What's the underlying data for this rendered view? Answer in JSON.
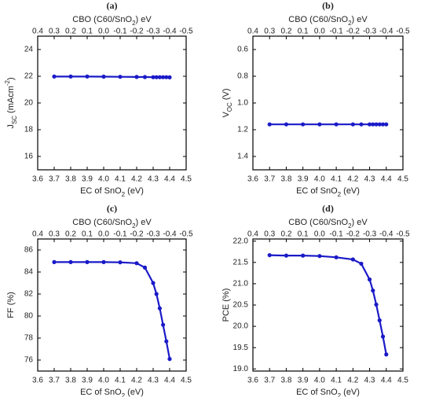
{
  "chart_data": [
    {
      "type": "line",
      "title": "(a)",
      "x2label": [
        {
          "text": "CBO (C60/SnO"
        },
        {
          "text": "2",
          "shift": "sub"
        },
        {
          "text": ") eV"
        }
      ],
      "xlabel": [
        {
          "text": "EC of SnO"
        },
        {
          "text": "2",
          "shift": "sub"
        },
        {
          "text": " (eV)"
        }
      ],
      "ylabel": [
        {
          "text": "J"
        },
        {
          "text": "SC",
          "shift": "sub"
        },
        {
          "text": " (mAcm"
        },
        {
          "text": "-2",
          "shift": "super"
        },
        {
          "text": ")"
        }
      ],
      "x": [
        3.7,
        3.8,
        3.9,
        4.0,
        4.1,
        4.2,
        4.25,
        4.3,
        4.32,
        4.34,
        4.36,
        4.38,
        4.4
      ],
      "values": [
        21.98,
        21.98,
        21.98,
        21.97,
        21.96,
        21.95,
        21.94,
        21.93,
        21.93,
        21.93,
        21.93,
        21.93,
        21.92
      ],
      "color": "#1a1ac8",
      "xlim": [
        3.6,
        4.5
      ],
      "xticks": [
        3.6,
        3.7,
        3.8,
        3.9,
        {
          "value": 4,
          "label": "4.0"
        },
        4.1,
        4.2,
        4.3,
        4.4,
        4.5
      ],
      "x2lim": [
        0.4,
        -0.5
      ],
      "x2ticks": [
        0.4,
        0.3,
        0.2,
        0.1,
        {
          "value": 0,
          "label": "0.0"
        },
        -0.1,
        -0.2,
        -0.3,
        -0.4,
        -0.5
      ],
      "ylim": [
        15,
        25
      ],
      "yticks": [
        16,
        18,
        20,
        22,
        24
      ]
    },
    {
      "type": "line",
      "title": "(b)",
      "x2label": [
        {
          "text": "CBO (C60/SnO"
        },
        {
          "text": "2",
          "shift": "sub"
        },
        {
          "text": ") eV"
        }
      ],
      "xlabel": [
        {
          "text": "EC of SnO"
        },
        {
          "text": "2",
          "shift": "sub"
        },
        {
          "text": " (eV)"
        }
      ],
      "ylabel": [
        {
          "text": "V"
        },
        {
          "text": "OC",
          "shift": "sub"
        },
        {
          "text": " (V)"
        }
      ],
      "x": [
        3.7,
        3.8,
        3.9,
        4.0,
        4.1,
        4.2,
        4.25,
        4.3,
        4.32,
        4.34,
        4.36,
        4.38,
        4.4
      ],
      "values": [
        1.16,
        1.16,
        1.16,
        1.16,
        1.16,
        1.16,
        1.16,
        1.16,
        1.16,
        1.16,
        1.16,
        1.16,
        1.16
      ],
      "color": "#1a1ac8",
      "xlim": [
        3.6,
        4.5
      ],
      "xticks": [
        3.6,
        3.7,
        3.8,
        3.9,
        {
          "value": 4,
          "label": "4.0"
        },
        4.1,
        4.2,
        4.3,
        4.4,
        4.5
      ],
      "x2lim": [
        0.4,
        -0.5
      ],
      "x2ticks": [
        0.4,
        0.3,
        0.2,
        0.1,
        {
          "value": 0,
          "label": "0.0"
        },
        -0.1,
        -0.2,
        -0.3,
        -0.4,
        -0.5
      ],
      "ylim": [
        1.5,
        0.5
      ],
      "yticks": [
        0.6,
        0.8,
        {
          "value": 1,
          "label": "1.0"
        },
        1.2,
        1.4
      ]
    },
    {
      "type": "line",
      "title": "(c)",
      "x2label": [
        {
          "text": "CBO (C60/SnO"
        },
        {
          "text": "2",
          "shift": "sub"
        },
        {
          "text": ") eV"
        }
      ],
      "xlabel": [
        {
          "text": "EC of SnO"
        },
        {
          "text": "2",
          "shift": "sub"
        },
        {
          "text": " (eV)"
        }
      ],
      "ylabel": [
        {
          "text": "FF (%)"
        }
      ],
      "x": [
        3.7,
        3.8,
        3.9,
        4.0,
        4.1,
        4.2,
        4.25,
        4.3,
        4.32,
        4.34,
        4.36,
        4.38,
        4.4
      ],
      "values": [
        84.9,
        84.9,
        84.9,
        84.9,
        84.88,
        84.8,
        84.4,
        83.0,
        82.0,
        80.7,
        79.2,
        77.7,
        76.1
      ],
      "color": "#1a1ac8",
      "xlim": [
        3.6,
        4.5
      ],
      "xticks": [
        3.6,
        3.7,
        3.8,
        3.9,
        {
          "value": 4,
          "label": "4.0"
        },
        4.1,
        4.2,
        4.3,
        4.4,
        4.5
      ],
      "x2lim": [
        0.4,
        -0.5
      ],
      "x2ticks": [
        0.4,
        0.3,
        0.2,
        0.1,
        {
          "value": 0,
          "label": "0.0"
        },
        -0.1,
        -0.2,
        -0.3,
        -0.4,
        -0.5
      ],
      "ylim": [
        75,
        87
      ],
      "yticks": [
        76,
        78,
        80,
        82,
        84,
        86
      ]
    },
    {
      "type": "line",
      "title": "(d)",
      "x2label": [
        {
          "text": "CBO (C60/SnO"
        },
        {
          "text": "2",
          "shift": "sub"
        },
        {
          "text": ") eV"
        }
      ],
      "xlabel": [
        {
          "text": "EC of SnO"
        },
        {
          "text": "2",
          "shift": "sub"
        },
        {
          "text": " (eV)"
        }
      ],
      "ylabel": [
        {
          "text": "PCE (%)"
        }
      ],
      "x": [
        3.7,
        3.8,
        3.9,
        4.0,
        4.1,
        4.2,
        4.25,
        4.3,
        4.32,
        4.34,
        4.36,
        4.38,
        4.4
      ],
      "values": [
        21.67,
        21.66,
        21.66,
        21.65,
        21.62,
        21.57,
        21.47,
        21.1,
        20.84,
        20.51,
        20.14,
        19.76,
        19.34
      ],
      "color": "#1a1ac8",
      "xlim": [
        3.6,
        4.5
      ],
      "xticks": [
        3.6,
        3.7,
        3.8,
        3.9,
        {
          "value": 4,
          "label": "4.0"
        },
        4.1,
        4.2,
        4.3,
        4.4,
        4.5
      ],
      "x2lim": [
        0.4,
        -0.5
      ],
      "x2ticks": [
        0.4,
        0.3,
        0.2,
        0.1,
        {
          "value": 0,
          "label": "0.0"
        },
        -0.1,
        -0.2,
        -0.3,
        -0.4,
        -0.5
      ],
      "ylim": [
        18.95,
        22.05
      ],
      "yticks": [
        {
          "value": 19,
          "label": "19.0"
        },
        19.5,
        {
          "value": 20,
          "label": "20.0"
        },
        20.5,
        {
          "value": 21,
          "label": "21.0"
        },
        21.5,
        {
          "value": 22,
          "label": "22.0"
        }
      ]
    }
  ]
}
